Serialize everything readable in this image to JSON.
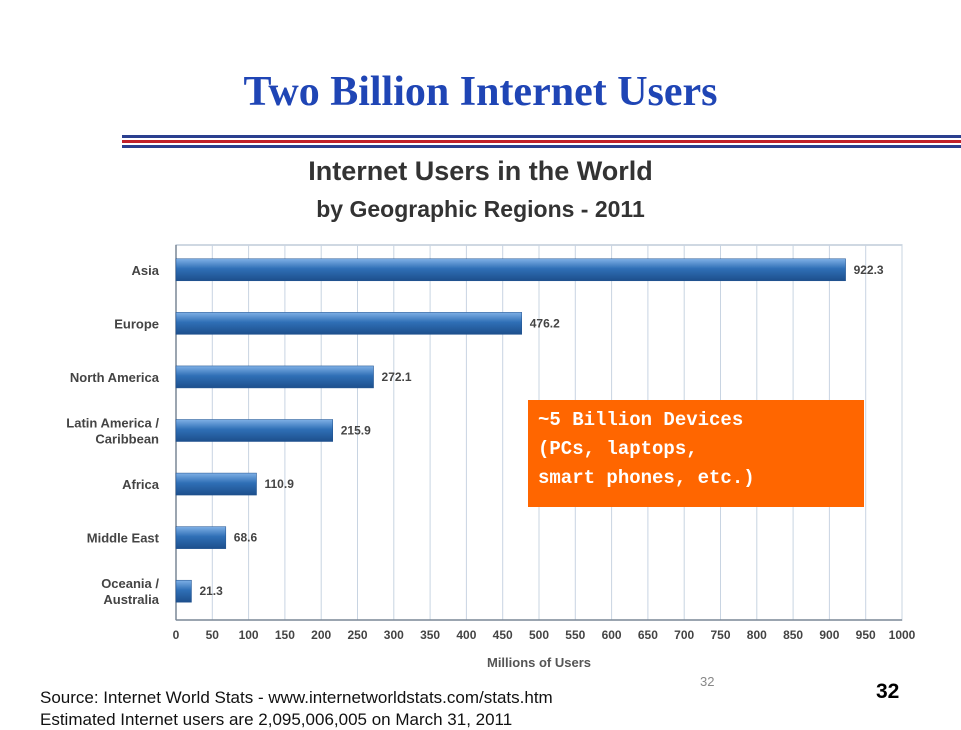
{
  "slide": {
    "title": "Two Billion Internet Users",
    "callout": [
      "~5 Billion Devices",
      "(PCs, laptops,",
      "smart phones, etc.)"
    ],
    "source_line1": "Source: Internet World Stats - www.internetworldstats.com/stats.htm",
    "source_line2": "Estimated Internet users are 2,095,006,005 on March 31, 2011",
    "page_number_small": "32",
    "page_number": "32"
  },
  "chart_data": {
    "type": "bar",
    "orientation": "horizontal",
    "title": "Internet Users in the World",
    "subtitle": "by Geographic Regions - 2011",
    "xlabel": "Millions of Users",
    "ylabel": "",
    "categories": [
      [
        "Asia"
      ],
      [
        "Europe"
      ],
      [
        "North America"
      ],
      [
        "Latin America /",
        "Caribbean"
      ],
      [
        "Africa"
      ],
      [
        "Middle East"
      ],
      [
        "Oceania  /",
        "Australia"
      ]
    ],
    "values": [
      922.3,
      476.2,
      272.1,
      215.9,
      110.9,
      68.6,
      21.3
    ],
    "value_labels": [
      "922.3",
      "476.2",
      "272.1",
      "215.9",
      "110.9",
      "68.6",
      "21.3"
    ],
    "xlim": [
      0,
      1000
    ],
    "xticks": [
      0,
      50,
      100,
      150,
      200,
      250,
      300,
      350,
      400,
      450,
      500,
      550,
      600,
      650,
      700,
      750,
      800,
      850,
      900,
      950,
      1000
    ],
    "grid": true,
    "bar_color": "#2f6fb6"
  }
}
